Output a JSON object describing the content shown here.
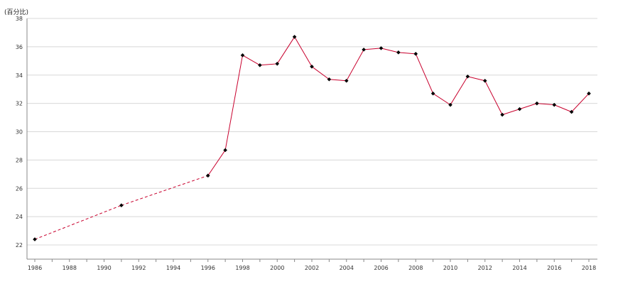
{
  "chart_data": {
    "type": "line",
    "unit_label": "(百分比)",
    "title": "",
    "xlabel": "",
    "ylabel": "",
    "xlim": [
      1986,
      2018
    ],
    "ylim": [
      21,
      38
    ],
    "x_ticks": [
      1986,
      1988,
      1990,
      1992,
      1994,
      1996,
      1998,
      2000,
      2002,
      2004,
      2006,
      2008,
      2010,
      2012,
      2014,
      2016,
      2018
    ],
    "y_ticks": [
      22,
      24,
      26,
      28,
      30,
      32,
      34,
      36,
      38
    ],
    "grid": true,
    "legend": "none",
    "line_color": "#c8002d",
    "marker_color": "#000000",
    "series": [
      {
        "points": [
          {
            "x": 1986,
            "y": 22.4
          },
          {
            "x": 1991,
            "y": 24.8
          },
          {
            "x": 1996,
            "y": 26.9
          },
          {
            "x": 1997,
            "y": 28.7
          },
          {
            "x": 1998,
            "y": 35.4
          },
          {
            "x": 1999,
            "y": 34.7
          },
          {
            "x": 2000,
            "y": 34.8
          },
          {
            "x": 2001,
            "y": 36.7
          },
          {
            "x": 2002,
            "y": 34.6
          },
          {
            "x": 2003,
            "y": 33.7
          },
          {
            "x": 2004,
            "y": 33.6
          },
          {
            "x": 2005,
            "y": 35.8
          },
          {
            "x": 2006,
            "y": 35.9
          },
          {
            "x": 2007,
            "y": 35.6
          },
          {
            "x": 2008,
            "y": 35.5
          },
          {
            "x": 2009,
            "y": 32.7
          },
          {
            "x": 2010,
            "y": 31.9
          },
          {
            "x": 2011,
            "y": 33.9
          },
          {
            "x": 2012,
            "y": 33.6
          },
          {
            "x": 2013,
            "y": 31.2
          },
          {
            "x": 2014,
            "y": 31.6
          },
          {
            "x": 2015,
            "y": 32.0
          },
          {
            "x": 2016,
            "y": 31.9
          },
          {
            "x": 2017,
            "y": 31.4
          },
          {
            "x": 2018,
            "y": 32.7
          }
        ],
        "dashed_until_x": 1996
      }
    ]
  }
}
